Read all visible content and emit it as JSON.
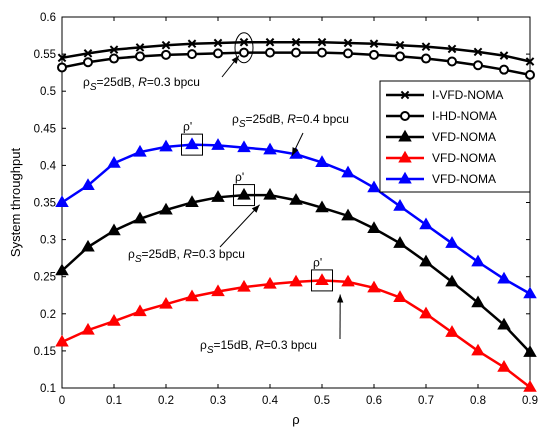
{
  "chart_data": {
    "type": "line",
    "xlabel": "ρ",
    "ylabel": "System throughput",
    "xlim": [
      0,
      0.9
    ],
    "ylim": [
      0.1,
      0.6
    ],
    "xticks": [
      "0",
      "0.1",
      "0.2",
      "0.3",
      "0.4",
      "0.5",
      "0.6",
      "0.7",
      "0.8",
      "0.9"
    ],
    "yticks": [
      "0.1",
      "0.15",
      "0.2",
      "0.25",
      "0.3",
      "0.35",
      "0.4",
      "0.45",
      "0.5",
      "0.55",
      "0.6"
    ],
    "x": [
      0,
      0.05,
      0.1,
      0.15,
      0.2,
      0.25,
      0.3,
      0.35,
      0.4,
      0.45,
      0.5,
      0.55,
      0.6,
      0.65,
      0.7,
      0.75,
      0.8,
      0.85,
      0.9
    ],
    "series": [
      {
        "name": "I-VFD-NOMA",
        "color": "#000000",
        "marker": "x",
        "values": [
          0.545,
          0.551,
          0.556,
          0.559,
          0.562,
          0.564,
          0.565,
          0.566,
          0.566,
          0.566,
          0.566,
          0.565,
          0.564,
          0.562,
          0.56,
          0.557,
          0.553,
          0.548,
          0.54
        ]
      },
      {
        "name": "I-HD-NOMA",
        "color": "#000000",
        "marker": "circle",
        "values": [
          0.532,
          0.539,
          0.544,
          0.547,
          0.549,
          0.55,
          0.551,
          0.552,
          0.552,
          0.552,
          0.552,
          0.551,
          0.549,
          0.547,
          0.544,
          0.54,
          0.535,
          0.529,
          0.522
        ]
      },
      {
        "name": "VFD-NOMA",
        "color": "#000000",
        "marker": "triangle",
        "values": [
          0.258,
          0.29,
          0.312,
          0.328,
          0.34,
          0.35,
          0.357,
          0.36,
          0.36,
          0.353,
          0.343,
          0.332,
          0.315,
          0.295,
          0.27,
          0.243,
          0.215,
          0.185,
          0.148
        ]
      },
      {
        "name": "VFD-NOMA",
        "color": "#ff0000",
        "marker": "triangle",
        "values": [
          0.162,
          0.178,
          0.19,
          0.203,
          0.213,
          0.223,
          0.23,
          0.236,
          0.24,
          0.243,
          0.245,
          0.243,
          0.235,
          0.222,
          0.2,
          0.175,
          0.15,
          0.128,
          0.101
        ]
      },
      {
        "name": "VFD-NOMA",
        "color": "#0000ff",
        "marker": "triangle",
        "values": [
          0.35,
          0.373,
          0.403,
          0.418,
          0.425,
          0.428,
          0.427,
          0.424,
          0.421,
          0.415,
          0.404,
          0.39,
          0.37,
          0.345,
          0.32,
          0.295,
          0.27,
          0.247,
          0.227
        ]
      }
    ],
    "legend": {
      "position": "top-right",
      "entries": [
        "I-VFD-NOMA",
        "I-HD-NOMA",
        "VFD-NOMA",
        "VFD-NOMA",
        "VFD-NOMA"
      ]
    },
    "annotations": [
      {
        "id": "ann-top",
        "rho": "ρ",
        "sub": "S",
        "rest": "=25dB, ",
        "R": "R",
        "rate": "=0.3 bpcu"
      },
      {
        "id": "ann-blue",
        "rho": "ρ",
        "sub": "S",
        "rest": "=25dB, ",
        "R": "R",
        "rate": "=0.4 bpcu"
      },
      {
        "id": "ann-black",
        "rho": "ρ",
        "sub": "S",
        "rest": "=25dB, ",
        "R": "R",
        "rate": "=0.3 bpcu"
      },
      {
        "id": "ann-red",
        "rho": "ρ",
        "sub": "S",
        "rest": "=15dB, ",
        "R": "R",
        "rate": "=0.3 bpcu"
      }
    ],
    "optimal_marks": [
      {
        "label": "ρ'",
        "series": 4,
        "x": 0.25,
        "y": 0.428
      },
      {
        "label": "ρ'",
        "series": 2,
        "x": 0.35,
        "y": 0.36
      },
      {
        "label": "ρ'",
        "series": 3,
        "x": 0.5,
        "y": 0.245
      }
    ],
    "grid": false
  }
}
